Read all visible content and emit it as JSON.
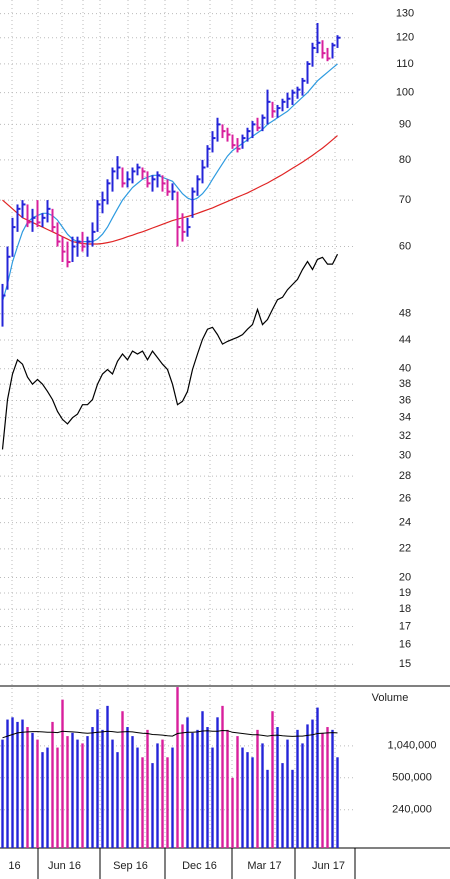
{
  "chart_data": {
    "type": "stock",
    "xlim": [
      -0.5,
      70.5
    ],
    "xticks": [
      {
        "value": 2.4,
        "label": "16"
      },
      {
        "value": 12.4,
        "label": "Jun 16"
      },
      {
        "value": 25.6,
        "label": "Sep 16"
      },
      {
        "value": 39.4,
        "label": "Dec 16"
      },
      {
        "value": 52.4,
        "label": "Mar 17"
      },
      {
        "value": 65.2,
        "label": "Jun 17"
      }
    ],
    "log_scale": true,
    "grid": true,
    "ylim": [
      14,
      136
    ],
    "yticks": [
      130,
      120,
      110,
      100,
      90,
      80,
      70,
      60,
      48,
      44,
      40,
      38,
      36,
      34,
      32,
      30,
      28,
      26,
      24,
      22,
      20,
      19,
      18,
      17,
      16,
      15
    ],
    "ohlc": {
      "up_color": "#2424d8",
      "down_color": "#d8209c",
      "high": [
        53,
        60,
        66,
        69,
        70,
        69,
        68,
        70,
        67,
        70,
        68,
        65,
        62,
        61,
        62,
        62,
        63,
        62,
        65,
        70,
        72,
        75,
        78,
        81,
        78,
        77,
        78,
        79,
        78,
        77,
        76,
        77,
        76,
        75,
        74,
        72,
        67,
        66,
        73,
        76,
        80,
        84,
        88,
        92,
        90,
        89,
        87,
        86,
        87,
        89,
        91,
        92,
        93,
        101,
        97,
        96,
        98,
        100,
        101,
        102,
        105,
        111,
        118,
        126,
        119,
        116,
        118,
        121
      ],
      "low": [
        46,
        52,
        58,
        63,
        66,
        64,
        63,
        64,
        64,
        65,
        63,
        60,
        57,
        56,
        57,
        58,
        59,
        58,
        60,
        63,
        67,
        69,
        72,
        75,
        73,
        73,
        74,
        76,
        75,
        73,
        72,
        73,
        72,
        71,
        70,
        60,
        61,
        62,
        66,
        71,
        74,
        78,
        82,
        85,
        86,
        85,
        83,
        82,
        83,
        85,
        86,
        88,
        88,
        90,
        92,
        92,
        94,
        95,
        96,
        98,
        99,
        103,
        109,
        114,
        112,
        111,
        112,
        116
      ],
      "close": [
        51,
        58,
        64,
        68,
        69,
        65,
        66,
        65,
        66,
        68,
        64,
        61,
        59,
        57,
        60,
        61,
        60,
        61,
        63,
        69,
        70,
        74,
        77,
        78,
        74,
        75,
        77,
        78,
        77,
        74,
        75,
        76,
        74,
        72,
        72,
        64,
        63,
        64,
        72,
        75,
        78,
        83,
        86,
        90,
        88,
        87,
        84,
        83,
        86,
        88,
        90,
        89,
        92,
        97,
        94,
        95,
        97,
        98,
        100,
        101,
        104,
        110,
        116,
        118,
        114,
        112,
        117,
        120
      ]
    },
    "lines": [
      {
        "color": "#2e9be0",
        "values": [
          50,
          53,
          57,
          60,
          63,
          65,
          66,
          66.5,
          67,
          67,
          66.5,
          65.5,
          64,
          62.5,
          61.5,
          61,
          61,
          61,
          61,
          61.5,
          62.5,
          64,
          66,
          68,
          70,
          71.5,
          73,
          74,
          75,
          75.5,
          76,
          76,
          75.5,
          75,
          74.5,
          73,
          71.5,
          70.5,
          70,
          70.5,
          71.5,
          73,
          75,
          77,
          79,
          81,
          82.5,
          83.5,
          84.5,
          85.5,
          86.5,
          87.5,
          88.5,
          90,
          91,
          92,
          93,
          94,
          95.5,
          97,
          98.5,
          100,
          102,
          104,
          105.5,
          107,
          108.5,
          110
        ]
      },
      {
        "color": "#e02424",
        "values": [
          70,
          69,
          68,
          67,
          66,
          65.5,
          65,
          64.5,
          64,
          63.5,
          63,
          62.5,
          62,
          61.5,
          61,
          60.8,
          60.6,
          60.5,
          60.5,
          60.5,
          60.6,
          60.8,
          61,
          61.3,
          61.6,
          62,
          62.3,
          62.7,
          63,
          63.4,
          63.8,
          64.2,
          64.6,
          65,
          65.4,
          65.7,
          66,
          66.3,
          66.6,
          67,
          67.4,
          67.8,
          68.2,
          68.7,
          69.2,
          69.7,
          70.2,
          70.7,
          71.2,
          71.7,
          72.3,
          72.9,
          73.5,
          74.1,
          74.8,
          75.5,
          76.2,
          77,
          77.8,
          78.6,
          79.4,
          80.3,
          81.2,
          82.2,
          83.2,
          84.3,
          85.5,
          86.7
        ]
      },
      {
        "color": "#000000",
        "values": [
          30.6,
          36.1,
          39.3,
          41.2,
          40.6,
          38.9,
          38.0,
          38.6,
          38.0,
          37.1,
          36.1,
          34.7,
          33.8,
          33.3,
          34.0,
          34.4,
          35.5,
          35.5,
          36.1,
          38.0,
          39.3,
          39.9,
          39.3,
          41.0,
          42.0,
          41.2,
          42.4,
          42.0,
          42.4,
          41.2,
          42.4,
          41.5,
          40.6,
          39.9,
          38.0,
          35.5,
          35.9,
          37.1,
          39.9,
          42.0,
          44.1,
          45.6,
          45.9,
          44.8,
          43.4,
          43.8,
          44.1,
          44.4,
          44.8,
          45.6,
          46.3,
          48.7,
          46.3,
          47.1,
          48.7,
          50.3,
          50.7,
          52.0,
          52.9,
          53.8,
          55.6,
          57.1,
          55.6,
          57.5,
          57.9,
          56.6,
          56.6,
          58.5
        ]
      }
    ],
    "volume": {
      "title": "Volume",
      "ylim": [
        100000,
        4100000
      ],
      "yticks": [
        {
          "value": 1040000,
          "label": "1,040,000"
        },
        {
          "value": 500000,
          "label": "500,000"
        },
        {
          "value": 240000,
          "label": "240,000"
        }
      ],
      "values": [
        1200000,
        1900000,
        2000000,
        1800000,
        1900000,
        1600000,
        1400000,
        1200000,
        900000,
        1000000,
        1800000,
        1000000,
        3000000,
        1300000,
        1400000,
        1200000,
        1100000,
        1300000,
        1600000,
        2400000,
        1500000,
        2600000,
        1200000,
        900000,
        2300000,
        1600000,
        1300000,
        1000000,
        800000,
        1500000,
        700000,
        1100000,
        1200000,
        800000,
        1000000,
        4000000,
        1700000,
        2000000,
        1400000,
        1500000,
        2300000,
        1600000,
        1000000,
        2000000,
        2600000,
        1500000,
        500000,
        1300000,
        1000000,
        900000,
        800000,
        1500000,
        1100000,
        600000,
        2300000,
        1600000,
        700000,
        1200000,
        600000,
        1500000,
        1100000,
        1700000,
        1900000,
        2500000,
        1400000,
        1600000,
        1500000,
        800000
      ],
      "ma_color": "#000000",
      "ma": [
        1250000,
        1300000,
        1350000,
        1400000,
        1420000,
        1430000,
        1440000,
        1440000,
        1430000,
        1420000,
        1420000,
        1410000,
        1450000,
        1440000,
        1430000,
        1420000,
        1400000,
        1390000,
        1400000,
        1420000,
        1430000,
        1450000,
        1440000,
        1420000,
        1430000,
        1440000,
        1430000,
        1410000,
        1390000,
        1380000,
        1350000,
        1340000,
        1330000,
        1310000,
        1300000,
        1380000,
        1400000,
        1420000,
        1420000,
        1430000,
        1460000,
        1470000,
        1450000,
        1450000,
        1480000,
        1470000,
        1420000,
        1400000,
        1380000,
        1360000,
        1340000,
        1340000,
        1320000,
        1300000,
        1320000,
        1330000,
        1310000,
        1300000,
        1290000,
        1300000,
        1300000,
        1320000,
        1340000,
        1380000,
        1390000,
        1400000,
        1410000,
        1400000
      ]
    }
  }
}
